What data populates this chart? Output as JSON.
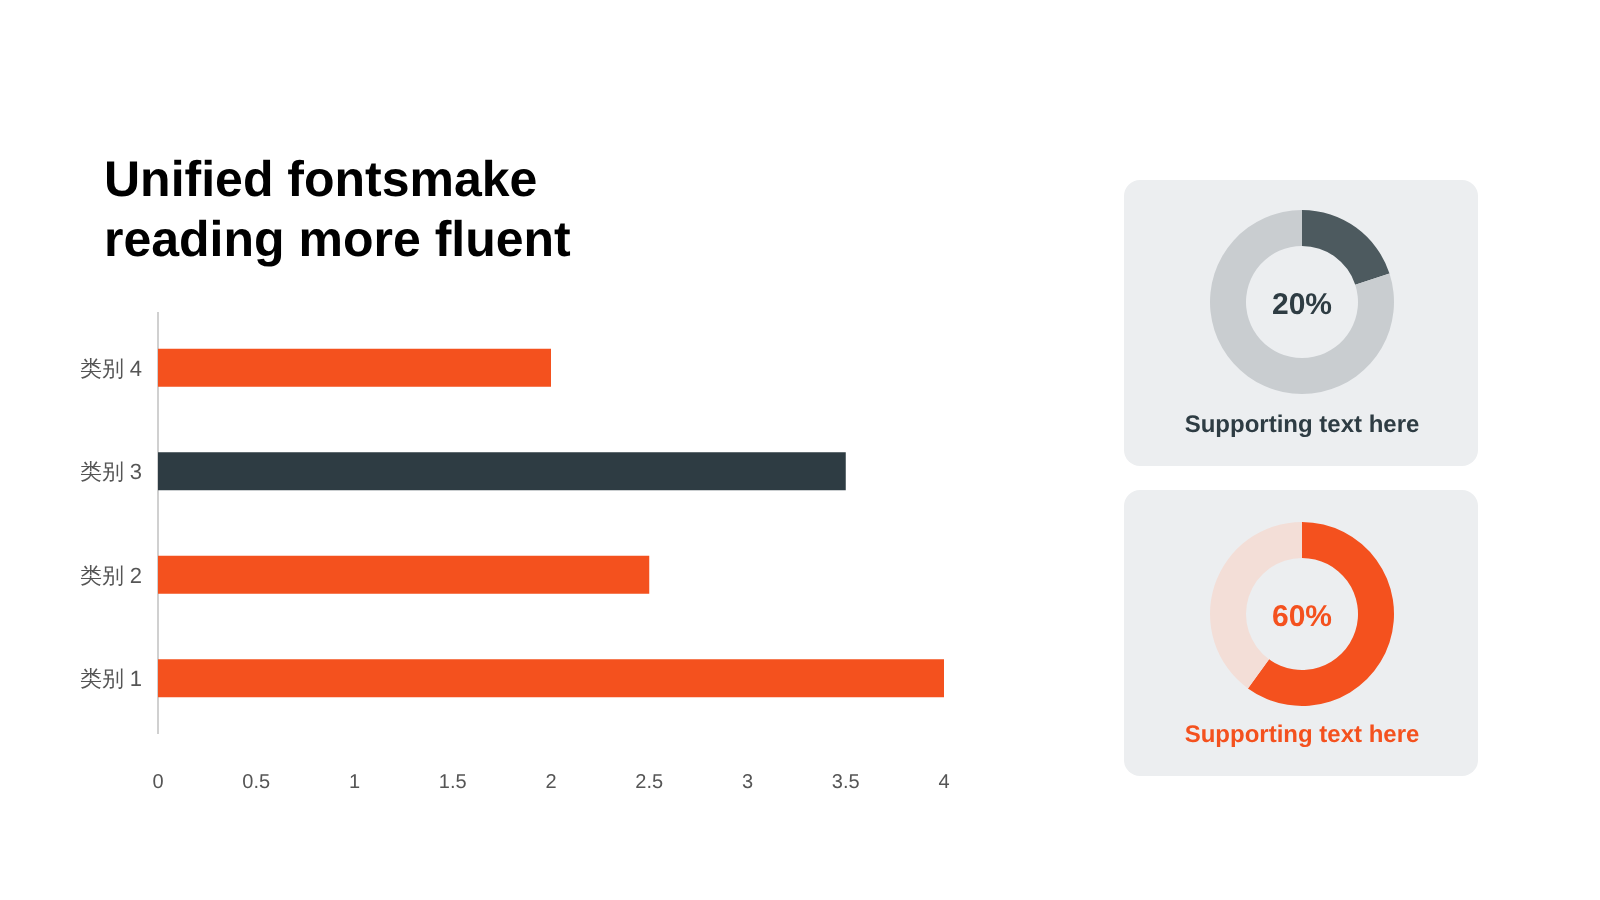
{
  "chart_data": [
    {
      "type": "bar",
      "orientation": "horizontal",
      "title": "Unified fontsmake reading more fluent",
      "categories": [
        "类别 4",
        "类别 3",
        "类别 2",
        "类别 1"
      ],
      "values": [
        2,
        3.5,
        2.5,
        4
      ],
      "colors": [
        "#f4511e",
        "#2e3c43",
        "#f4511e",
        "#f4511e"
      ],
      "xlim": [
        0,
        4
      ],
      "xticks": [
        0,
        0.5,
        1,
        1.5,
        2,
        2.5,
        3,
        3.5,
        4
      ],
      "grid": false
    },
    {
      "type": "donut",
      "categories": [
        null,
        null
      ],
      "values": [
        20,
        80
      ],
      "colors": [
        "#4d5a5f",
        "#c9cdd0"
      ],
      "annotations": [
        "20%",
        "Supporting text here"
      ]
    },
    {
      "type": "donut",
      "categories": [
        null,
        null
      ],
      "values": [
        60,
        40
      ],
      "colors": [
        "#f4511e",
        "#f3ded7"
      ],
      "annotations": [
        "60%",
        "Supporting text here"
      ]
    }
  ]
}
